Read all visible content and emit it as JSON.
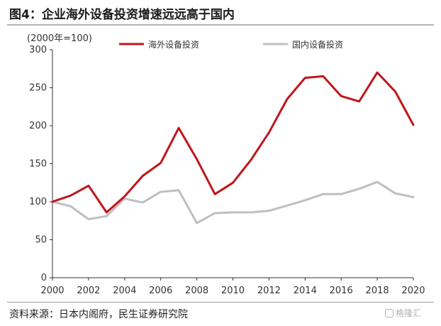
{
  "title": "图4：企业海外设备投资增速远远高于国内",
  "source": "资料来源：日本内阁府，民生证券研究院",
  "watermark": "格隆汇",
  "chart_data": {
    "type": "line",
    "unit_label": "(2000年=100)",
    "x": [
      2000,
      2001,
      2002,
      2003,
      2004,
      2005,
      2006,
      2007,
      2008,
      2009,
      2010,
      2011,
      2012,
      2013,
      2014,
      2015,
      2016,
      2017,
      2018,
      2019,
      2020
    ],
    "x_ticks": [
      "2000",
      "2002",
      "2004",
      "2006",
      "2008",
      "2010",
      "2012",
      "2014",
      "2016",
      "2018",
      "2020"
    ],
    "y_ticks": [
      "0",
      "50",
      "100",
      "150",
      "200",
      "250",
      "300"
    ],
    "ylim": [
      0,
      300
    ],
    "legend_position": "top",
    "series": [
      {
        "name": "海外设备投资",
        "color": "#c0161c",
        "values": [
          100,
          108,
          121,
          86,
          107,
          134,
          151,
          197,
          156,
          110,
          125,
          155,
          191,
          235,
          263,
          265,
          239,
          232,
          270,
          245,
          201
        ]
      },
      {
        "name": "国内设备投资",
        "color": "#bfbfbf",
        "values": [
          100,
          94,
          77,
          81,
          104,
          99,
          113,
          115,
          72,
          85,
          86,
          86,
          88,
          95,
          102,
          110,
          110,
          117,
          126,
          111,
          106
        ]
      }
    ]
  }
}
